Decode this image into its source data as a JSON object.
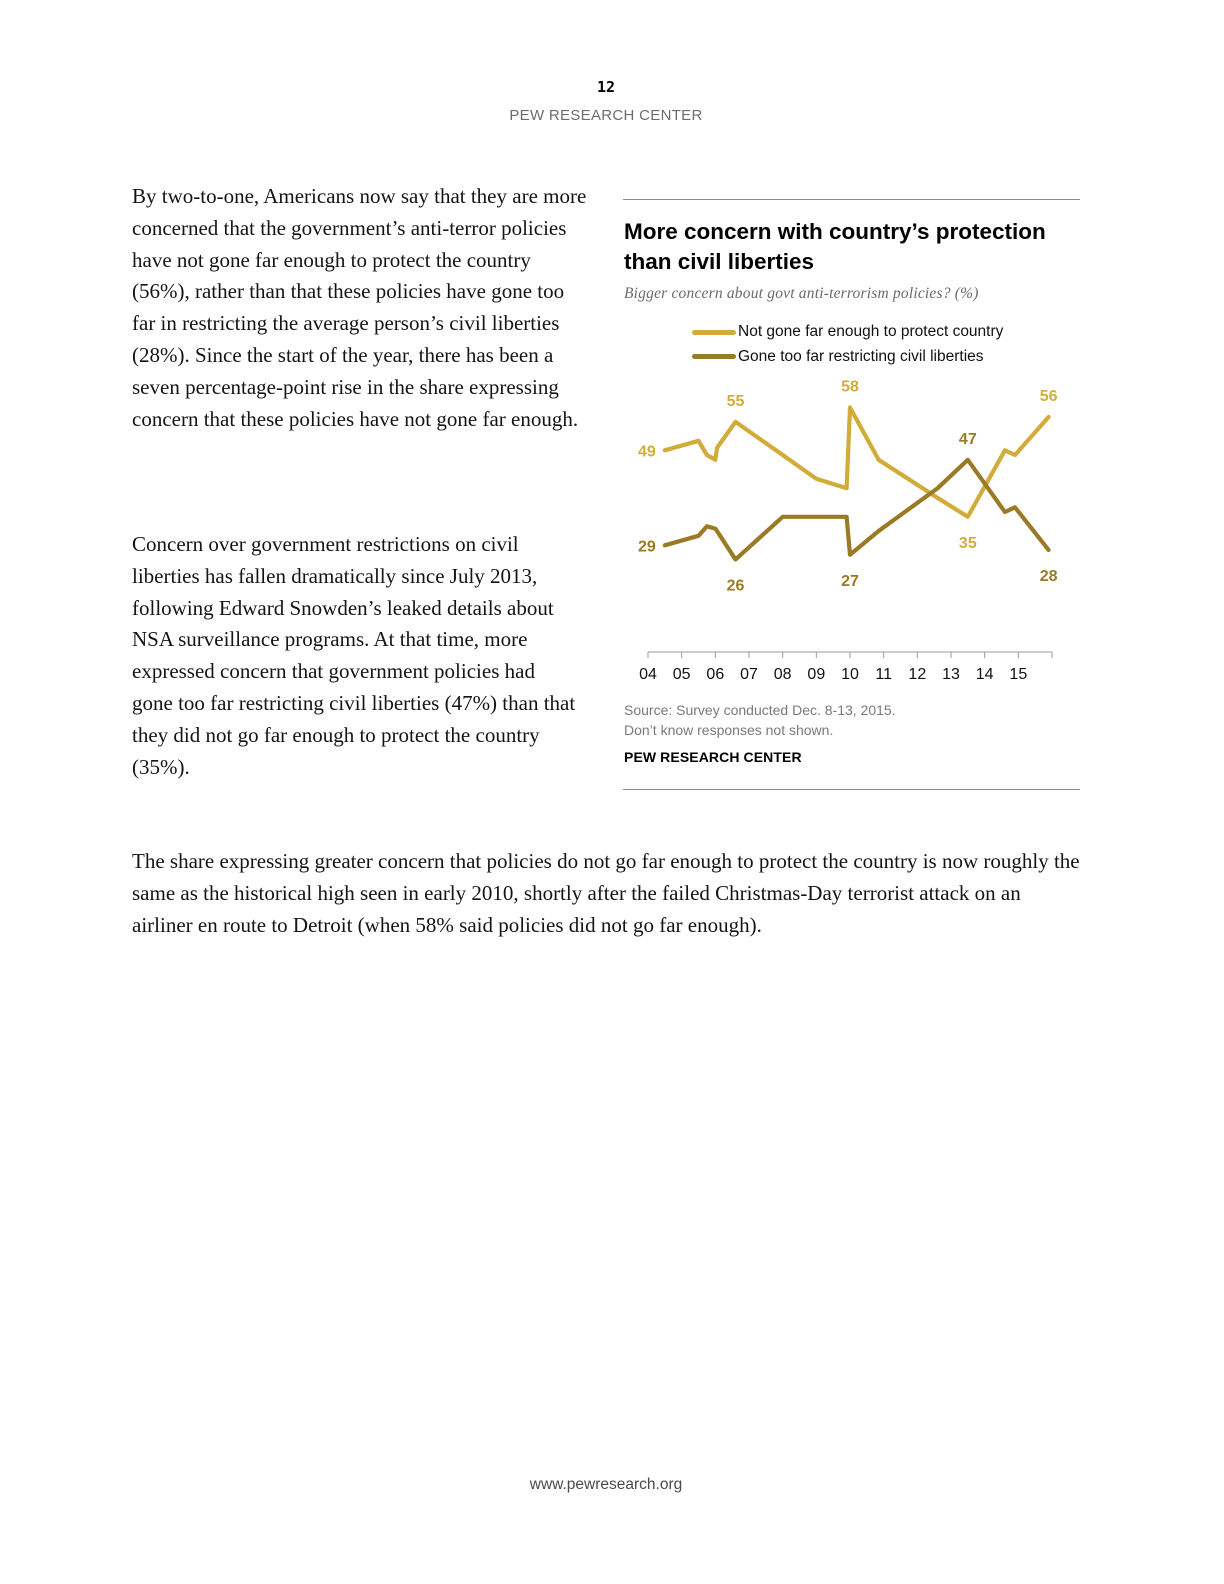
{
  "header": {
    "page_number": "12",
    "org": "PEW RESEARCH CENTER"
  },
  "body": {
    "para1": "By two-to-one, Americans now say that they are more concerned that the government’s anti-terror policies have not gone far enough to protect the country (56%), rather than that these policies have gone too far in restricting the average person’s civil liberties (28%). Since the start of the year, there has been a seven percentage-point rise in the share expressing concern that these policies have not gone far enough.",
    "para2": "Concern over government restrictions on civil liberties has fallen dramatically since July 2013, following Edward Snowden’s leaked details about NSA surveillance programs. At that time, more expressed concern that government policies had gone too far restricting civil liberties (47%) than that they did not go far enough to protect the country (35%).",
    "para3": "The share expressing greater concern that policies do not go far enough to protect the country is now roughly the same as the historical high seen in early 2010, shortly after the failed Christmas-Day terrorist attack on an airliner en route to Detroit (when 58% said policies did not go far enough)."
  },
  "chart_data": {
    "type": "line",
    "title": "More concern with country’s protection than civil liberties",
    "subtitle": "Bigger concern about govt anti-terrorism policies? (%)",
    "x_ticks": [
      "04",
      "05",
      "06",
      "07",
      "08",
      "09",
      "10",
      "11",
      "12",
      "13",
      "14",
      "15"
    ],
    "xlim": [
      2004,
      2016
    ],
    "ylim": [
      24,
      60
    ],
    "grid": false,
    "legend_position": "top",
    "series": [
      {
        "name": "Not gone far enough to protect country",
        "color": "#d2ac3a",
        "points": [
          [
            2004.5,
            49
          ],
          [
            2005.5,
            51
          ],
          [
            2005.75,
            48
          ],
          [
            2006.0,
            47
          ],
          [
            2006.05,
            49.5
          ],
          [
            2006.6,
            55
          ],
          [
            2008.0,
            48
          ],
          [
            2009.0,
            43
          ],
          [
            2009.9,
            41
          ],
          [
            2010.0,
            58
          ],
          [
            2010.85,
            47
          ],
          [
            2012.6,
            39
          ],
          [
            2013.5,
            35
          ],
          [
            2014.6,
            49
          ],
          [
            2014.9,
            48
          ],
          [
            2015.9,
            56
          ]
        ],
        "labels": [
          {
            "value": "49",
            "x": 2004.5,
            "y": 49,
            "placement": "left"
          },
          {
            "value": "55",
            "x": 2006.6,
            "y": 55,
            "placement": "above"
          },
          {
            "value": "58",
            "x": 2010.0,
            "y": 58,
            "placement": "above"
          },
          {
            "value": "35",
            "x": 2013.5,
            "y": 35,
            "placement": "below"
          },
          {
            "value": "56",
            "x": 2015.9,
            "y": 56,
            "placement": "above"
          }
        ]
      },
      {
        "name": "Gone too far restricting civil liberties",
        "color": "#9a7a25",
        "points": [
          [
            2004.5,
            29
          ],
          [
            2005.5,
            31
          ],
          [
            2005.75,
            33
          ],
          [
            2006.0,
            32.5
          ],
          [
            2006.05,
            32
          ],
          [
            2006.6,
            26
          ],
          [
            2008.0,
            35
          ],
          [
            2009.0,
            35
          ],
          [
            2009.9,
            35
          ],
          [
            2010.0,
            27
          ],
          [
            2010.85,
            32
          ],
          [
            2012.6,
            41
          ],
          [
            2013.5,
            47
          ],
          [
            2014.6,
            36
          ],
          [
            2014.9,
            37
          ],
          [
            2015.9,
            28
          ]
        ],
        "labels": [
          {
            "value": "29",
            "x": 2004.5,
            "y": 29,
            "placement": "left"
          },
          {
            "value": "26",
            "x": 2006.6,
            "y": 26,
            "placement": "below"
          },
          {
            "value": "27",
            "x": 2010.0,
            "y": 27,
            "placement": "below"
          },
          {
            "value": "47",
            "x": 2013.5,
            "y": 47,
            "placement": "above"
          },
          {
            "value": "28",
            "x": 2015.9,
            "y": 28,
            "placement": "below"
          }
        ]
      }
    ],
    "source": "Source: Survey conducted Dec. 8-13, 2015.",
    "note": "Don’t know responses not shown.",
    "org": "PEW RESEARCH CENTER"
  },
  "footer": {
    "url": "www.pewresearch.org"
  }
}
